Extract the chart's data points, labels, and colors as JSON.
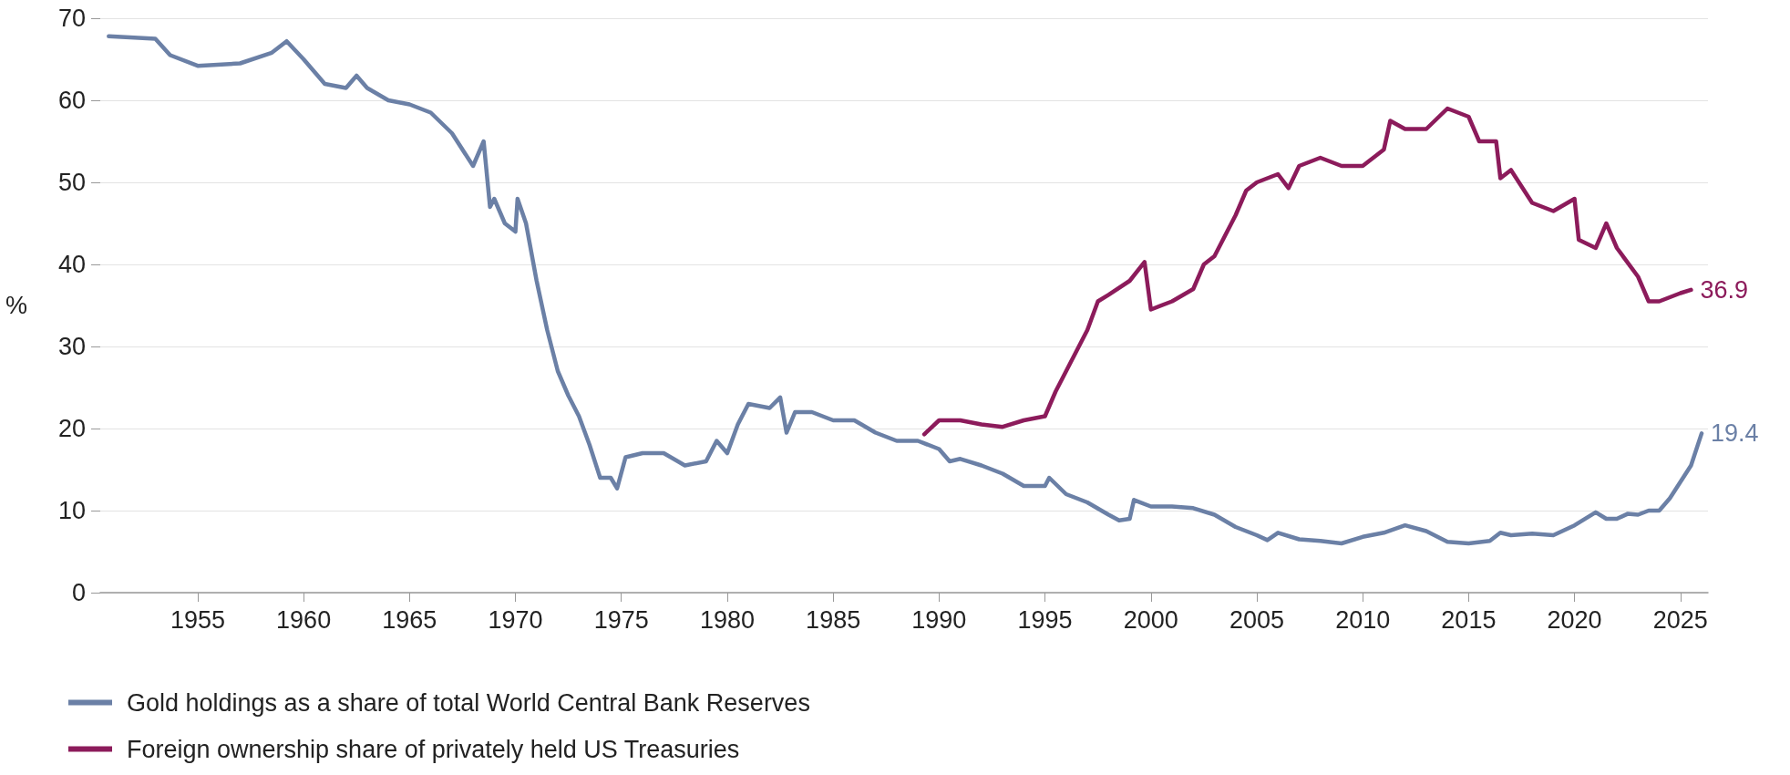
{
  "chart_data": {
    "type": "line",
    "ylabel": "%",
    "xlim": [
      1950.4,
      2026.3
    ],
    "xticks": [
      1955,
      1960,
      1965,
      1970,
      1975,
      1980,
      1985,
      1990,
      1995,
      2000,
      2005,
      2010,
      2015,
      2020,
      2025
    ],
    "ylim": [
      0,
      70
    ],
    "yticks": [
      0,
      10,
      20,
      30,
      40,
      50,
      60,
      70
    ],
    "grid": "y",
    "legend": "bottom left",
    "marker": "none",
    "line_style": "solid",
    "series": [
      {
        "name": "Gold holdings as a share of total World Central Bank Reserves",
        "color": "#6b80a6",
        "x": [
          1950.8,
          1953,
          1953.7,
          1955,
          1957,
          1958.5,
          1959.2,
          1960,
          1961,
          1962,
          1962.5,
          1963,
          1964,
          1965,
          1966,
          1967,
          1968,
          1968.5,
          1968.8,
          1969,
          1969.5,
          1970,
          1970.1,
          1970.5,
          1971,
          1971.5,
          1972,
          1972.5,
          1973,
          1973.5,
          1974,
          1974.5,
          1974.8,
          1975.2,
          1976,
          1977,
          1978,
          1979,
          1979.5,
          1980,
          1980.5,
          1981,
          1982,
          1982.5,
          1982.8,
          1983.2,
          1984,
          1985,
          1986,
          1987,
          1988,
          1989,
          1990,
          1990.5,
          1991,
          1992,
          1993,
          1994,
          1995,
          1995.2,
          1996,
          1997,
          1998,
          1998.5,
          1999,
          1999.2,
          2000,
          2001,
          2002,
          2003,
          2004,
          2005,
          2005.5,
          2006,
          2007,
          2008,
          2009,
          2010,
          2011,
          2012,
          2013,
          2014,
          2015,
          2016,
          2016.5,
          2017,
          2018,
          2019,
          2020,
          2021,
          2021.5,
          2022,
          2022.5,
          2023,
          2023.5,
          2024,
          2024.5,
          2025,
          2025.5,
          2026
        ],
        "values": [
          67.8,
          67.5,
          65.5,
          64.2,
          64.5,
          65.8,
          67.2,
          65,
          62,
          61.5,
          63,
          61.5,
          60,
          59.5,
          58.5,
          56,
          52,
          55,
          47,
          48,
          45,
          44,
          48,
          45,
          38,
          32,
          27,
          24,
          21.5,
          18,
          14,
          14,
          12.7,
          16.5,
          17,
          17,
          15.5,
          16,
          18.5,
          17,
          20.5,
          23,
          22.5,
          23.8,
          19.5,
          22,
          22,
          21,
          21,
          19.5,
          18.5,
          18.5,
          17.5,
          16,
          16.3,
          15.5,
          14.5,
          13,
          13,
          14,
          12,
          11,
          9.5,
          8.8,
          9,
          11.3,
          10.5,
          10.5,
          10.3,
          9.5,
          8,
          7,
          6.4,
          7.3,
          6.5,
          6.3,
          6,
          6.8,
          7.3,
          8.2,
          7.5,
          6.2,
          6,
          6.3,
          7.3,
          7,
          7.2,
          7,
          8.2,
          9.8,
          9,
          9,
          9.6,
          9.5,
          10,
          10,
          11.5,
          13.5,
          15.5,
          19.4
        ],
        "value_labels": [
          null,
          null,
          null,
          null,
          null,
          null,
          null,
          null,
          null,
          null,
          null,
          null,
          null,
          null,
          null,
          null,
          null,
          null,
          null,
          null,
          null,
          null,
          null,
          null,
          null,
          null,
          null,
          null,
          null,
          null,
          null,
          null,
          null,
          null,
          null,
          null,
          null,
          null,
          null,
          null,
          null,
          null,
          null,
          null,
          null,
          null,
          null,
          null,
          null,
          null,
          null,
          null,
          null,
          null,
          null,
          null,
          null,
          null,
          null,
          null,
          null,
          null,
          null,
          null,
          null,
          null,
          null,
          null,
          null,
          null,
          null,
          null,
          null,
          null,
          null,
          null,
          null,
          null,
          null,
          null,
          null,
          null,
          null,
          null,
          null,
          null,
          null,
          null,
          null,
          null,
          null,
          null,
          null,
          null,
          null,
          null,
          null,
          null,
          null,
          "19.4"
        ]
      },
      {
        "name": "Foreign ownership share of privately held US Treasuries",
        "color": "#8c1b5b",
        "x": [
          1989.3,
          1990,
          1991,
          1992,
          1993,
          1994,
          1995,
          1995.5,
          1996,
          1997,
          1997.5,
          1998,
          1999,
          1999.7,
          2000,
          2001,
          2002,
          2002.5,
          2003,
          2004,
          2004.5,
          2005,
          2006,
          2006.5,
          2007,
          2008,
          2009,
          2010,
          2011,
          2011.3,
          2012,
          2013,
          2014,
          2015,
          2015.5,
          2016.3,
          2016.5,
          2017,
          2018,
          2019,
          2020,
          2020.2,
          2021,
          2021.5,
          2022,
          2023,
          2023.5,
          2024,
          2025,
          2025.5
        ],
        "values": [
          19.3,
          21,
          21,
          20.5,
          20.2,
          21,
          21.5,
          24.5,
          27,
          32,
          35.5,
          36.3,
          38,
          40.3,
          34.5,
          35.5,
          37,
          40,
          41,
          46,
          49,
          50,
          51,
          49.3,
          52,
          53,
          52,
          52,
          54,
          57.5,
          56.5,
          56.5,
          59,
          58,
          55,
          55,
          50.5,
          51.5,
          47.5,
          46.5,
          48,
          43,
          42,
          45,
          42,
          38.5,
          35.5,
          35.5,
          36.5,
          36.9
        ],
        "value_labels": [
          null,
          null,
          null,
          null,
          null,
          null,
          null,
          null,
          null,
          null,
          null,
          null,
          null,
          null,
          null,
          null,
          null,
          null,
          null,
          null,
          null,
          null,
          null,
          null,
          null,
          null,
          null,
          null,
          null,
          null,
          null,
          null,
          null,
          null,
          null,
          null,
          null,
          null,
          null,
          null,
          null,
          null,
          null,
          null,
          null,
          null,
          null,
          null,
          null,
          "36.9"
        ]
      }
    ]
  }
}
